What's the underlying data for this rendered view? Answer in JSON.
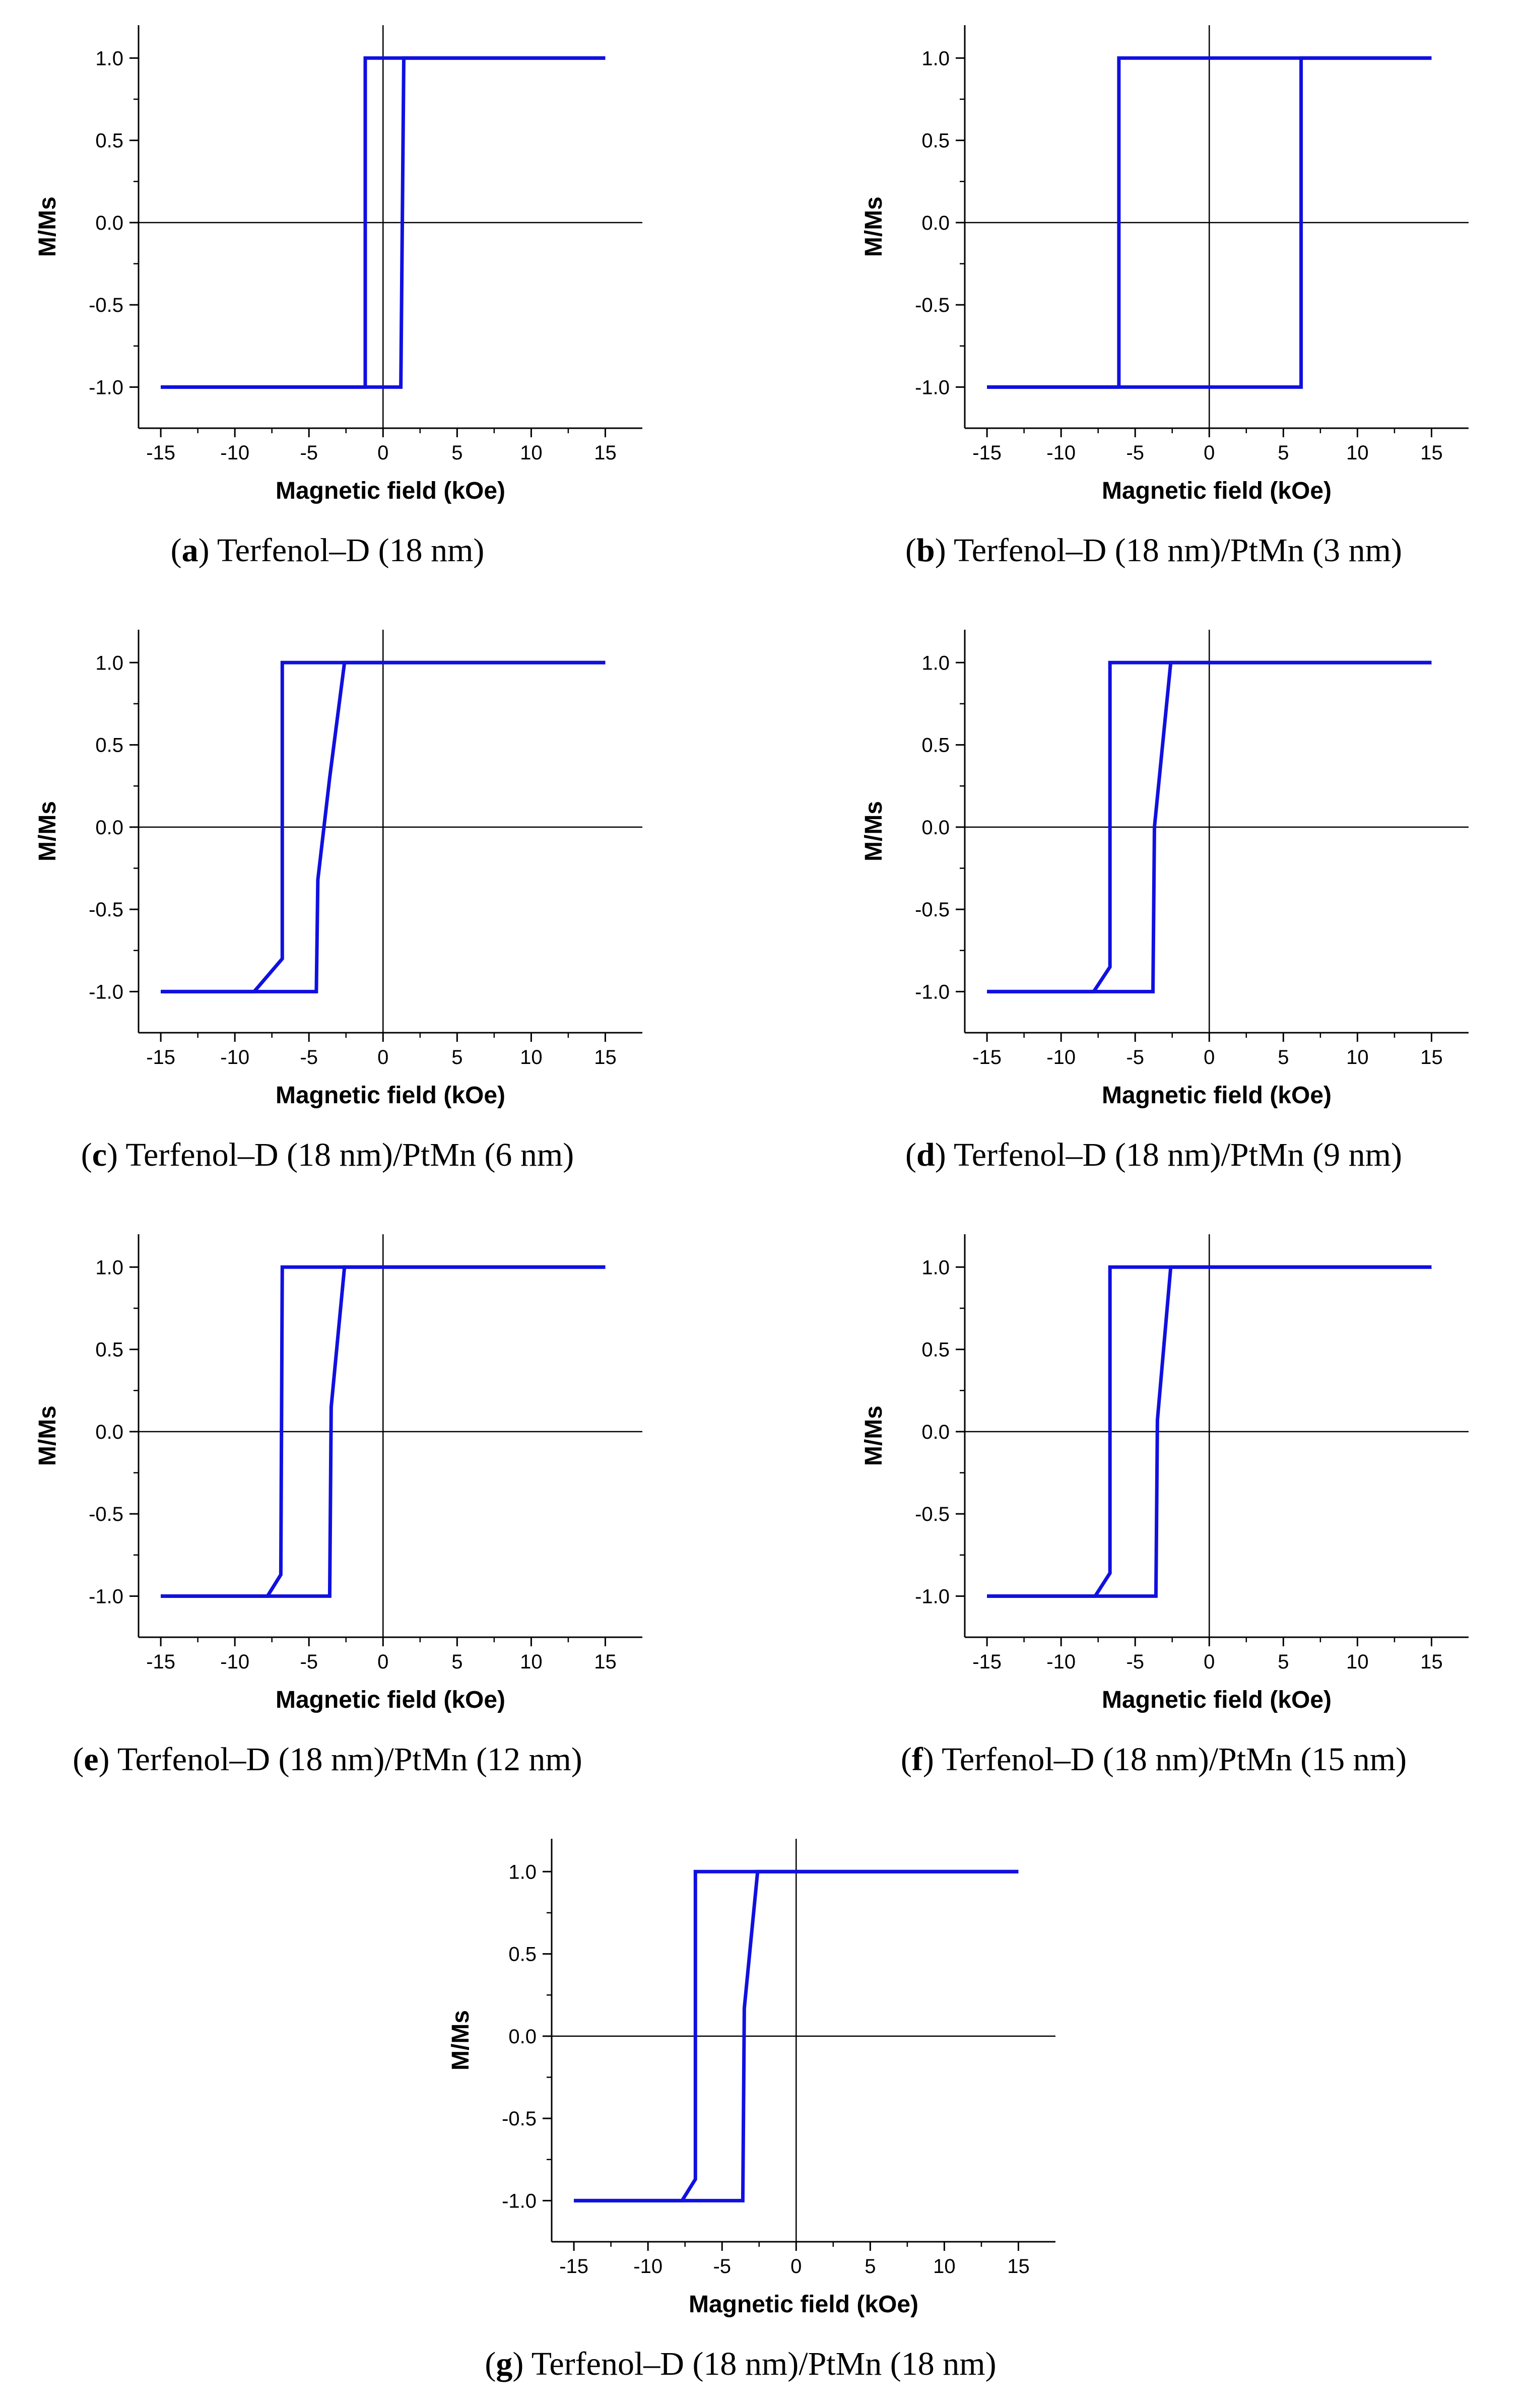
{
  "chart_data": [
    {
      "id": "a",
      "type": "line",
      "caption_letter": "a",
      "caption_text": "Terfenol–D (18 nm)",
      "xlabel": "Magnetic field (kOe)",
      "ylabel": "M/Ms",
      "xlim": [
        -16.5,
        17.5
      ],
      "ylim": [
        -1.25,
        1.2
      ],
      "xticks": [
        -15,
        -10,
        -5,
        0,
        5,
        10,
        15
      ],
      "yticks": [
        -1.0,
        -0.5,
        0.0,
        0.5,
        1.0
      ],
      "series": [
        {
          "points": [
            [
              -15,
              -1
            ],
            [
              -1.2,
              -1
            ],
            [
              -1.2,
              1
            ],
            [
              15,
              1
            ]
          ]
        },
        {
          "points": [
            [
              15,
              1
            ],
            [
              1.4,
              1
            ],
            [
              1.2,
              -1
            ],
            [
              -15,
              -1
            ]
          ]
        }
      ]
    },
    {
      "id": "b",
      "type": "line",
      "caption_letter": "b",
      "caption_text": "Terfenol–D (18 nm)/PtMn (3 nm)",
      "xlabel": "Magnetic field (kOe)",
      "ylabel": "M/Ms",
      "xlim": [
        -16.5,
        17.5
      ],
      "ylim": [
        -1.25,
        1.2
      ],
      "xticks": [
        -15,
        -10,
        -5,
        0,
        5,
        10,
        15
      ],
      "yticks": [
        -1.0,
        -0.5,
        0.0,
        0.5,
        1.0
      ],
      "series": [
        {
          "points": [
            [
              -15,
              -1
            ],
            [
              6.2,
              -1
            ],
            [
              6.2,
              1
            ],
            [
              15,
              1
            ]
          ]
        },
        {
          "points": [
            [
              15,
              1
            ],
            [
              -6.1,
              1
            ],
            [
              -6.1,
              -1
            ],
            [
              -15,
              -1
            ]
          ]
        }
      ]
    },
    {
      "id": "c",
      "type": "line",
      "caption_letter": "c",
      "caption_text": "Terfenol–D (18 nm)/PtMn (6 nm)",
      "xlabel": "Magnetic field (kOe)",
      "ylabel": "M/Ms",
      "xlim": [
        -16.5,
        17.5
      ],
      "ylim": [
        -1.25,
        1.2
      ],
      "xticks": [
        -15,
        -10,
        -5,
        0,
        5,
        10,
        15
      ],
      "yticks": [
        -1.0,
        -0.5,
        0.0,
        0.5,
        1.0
      ],
      "series": [
        {
          "points": [
            [
              -15,
              -1
            ],
            [
              -4.5,
              -1
            ],
            [
              -4.4,
              -0.32
            ],
            [
              -3.6,
              0.3
            ],
            [
              -2.6,
              1
            ],
            [
              15,
              1
            ]
          ]
        },
        {
          "points": [
            [
              15,
              1
            ],
            [
              -6.8,
              1
            ],
            [
              -6.8,
              -0.8
            ],
            [
              -8.7,
              -1
            ],
            [
              -15,
              -1
            ]
          ]
        }
      ]
    },
    {
      "id": "d",
      "type": "line",
      "caption_letter": "d",
      "caption_text": "Terfenol–D (18 nm)/PtMn (9 nm)",
      "xlabel": "Magnetic field (kOe)",
      "ylabel": "M/Ms",
      "xlim": [
        -16.5,
        17.5
      ],
      "ylim": [
        -1.25,
        1.2
      ],
      "xticks": [
        -15,
        -10,
        -5,
        0,
        5,
        10,
        15
      ],
      "yticks": [
        -1.0,
        -0.5,
        0.0,
        0.5,
        1.0
      ],
      "series": [
        {
          "points": [
            [
              -15,
              -1
            ],
            [
              -3.8,
              -1
            ],
            [
              -3.7,
              0
            ],
            [
              -2.6,
              1
            ],
            [
              15,
              1
            ]
          ]
        },
        {
          "points": [
            [
              15,
              1
            ],
            [
              -6.7,
              1
            ],
            [
              -6.7,
              -0.85
            ],
            [
              -7.8,
              -1
            ],
            [
              -15,
              -1
            ]
          ]
        }
      ]
    },
    {
      "id": "e",
      "type": "line",
      "caption_letter": "e",
      "caption_text": "Terfenol–D (18 nm)/PtMn (12 nm)",
      "xlabel": "Magnetic field (kOe)",
      "ylabel": "M/Ms",
      "xlim": [
        -16.5,
        17.5
      ],
      "ylim": [
        -1.25,
        1.2
      ],
      "xticks": [
        -15,
        -10,
        -5,
        0,
        5,
        10,
        15
      ],
      "yticks": [
        -1.0,
        -0.5,
        0.0,
        0.5,
        1.0
      ],
      "series": [
        {
          "points": [
            [
              -15,
              -1
            ],
            [
              -3.6,
              -1
            ],
            [
              -3.5,
              0.15
            ],
            [
              -2.6,
              1
            ],
            [
              15,
              1
            ]
          ]
        },
        {
          "points": [
            [
              15,
              1
            ],
            [
              -6.8,
              1
            ],
            [
              -6.9,
              -0.87
            ],
            [
              -7.8,
              -1
            ],
            [
              -15,
              -1
            ]
          ]
        }
      ]
    },
    {
      "id": "f",
      "type": "line",
      "caption_letter": "f",
      "caption_text": "Terfenol–D (18 nm)/PtMn (15 nm)",
      "xlabel": "Magnetic field (kOe)",
      "ylabel": "M/Ms",
      "xlim": [
        -16.5,
        17.5
      ],
      "ylim": [
        -1.25,
        1.2
      ],
      "xticks": [
        -15,
        -10,
        -5,
        0,
        5,
        10,
        15
      ],
      "yticks": [
        -1.0,
        -0.5,
        0.0,
        0.5,
        1.0
      ],
      "series": [
        {
          "points": [
            [
              -15,
              -1
            ],
            [
              -3.6,
              -1
            ],
            [
              -3.5,
              0.07
            ],
            [
              -2.6,
              1
            ],
            [
              15,
              1
            ]
          ]
        },
        {
          "points": [
            [
              15,
              1
            ],
            [
              -6.7,
              1
            ],
            [
              -6.7,
              -0.86
            ],
            [
              -7.7,
              -1
            ],
            [
              -15,
              -1
            ]
          ]
        }
      ]
    },
    {
      "id": "g",
      "type": "line",
      "caption_letter": "g",
      "caption_text": "Terfenol–D (18 nm)/PtMn (18 nm)",
      "xlabel": "Magnetic field (kOe)",
      "ylabel": "M/Ms",
      "xlim": [
        -16.5,
        17.5
      ],
      "ylim": [
        -1.25,
        1.2
      ],
      "xticks": [
        -15,
        -10,
        -5,
        0,
        5,
        10,
        15
      ],
      "yticks": [
        -1.0,
        -0.5,
        0.0,
        0.5,
        1.0
      ],
      "series": [
        {
          "points": [
            [
              -15,
              -1
            ],
            [
              -3.6,
              -1
            ],
            [
              -3.5,
              0.17
            ],
            [
              -2.6,
              1
            ],
            [
              15,
              1
            ]
          ]
        },
        {
          "points": [
            [
              15,
              1
            ],
            [
              -6.8,
              1
            ],
            [
              -6.8,
              -0.87
            ],
            [
              -7.7,
              -1
            ],
            [
              -15,
              -1
            ]
          ]
        }
      ]
    }
  ],
  "style": {
    "line_color": "#1010e0",
    "axis_color": "#000000"
  }
}
